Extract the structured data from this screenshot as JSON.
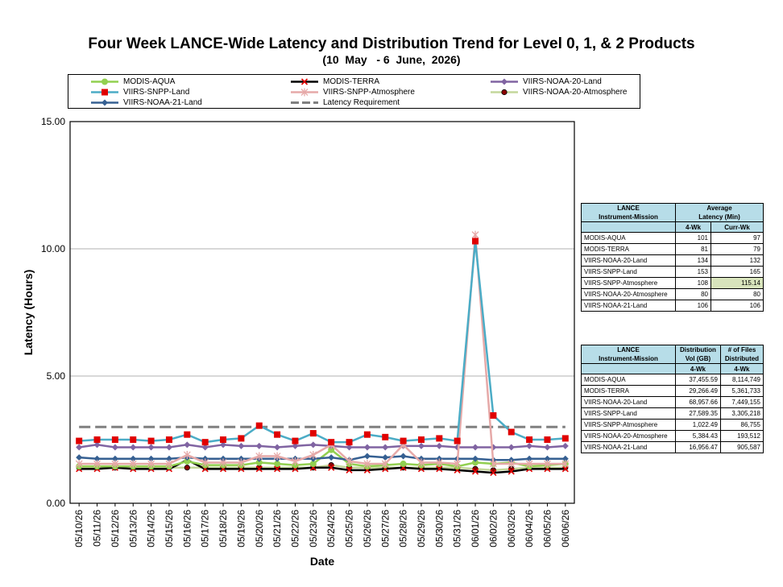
{
  "title": "Four Week LANCE-Wide Latency and Distribution Trend for Level 0, 1, & 2 Products",
  "subtitle": "(10  May   - 6  June,  2026)",
  "legend": [
    {
      "label": "MODIS-AQUA",
      "color": "#92d050",
      "marker": "circle"
    },
    {
      "label": "MODIS-TERRA",
      "color": "#000000",
      "marker": "x"
    },
    {
      "label": "VIIRS-NOAA-20-Land",
      "color": "#8064a2",
      "marker": "diamond"
    },
    {
      "label": "VIIRS-SNPP-Land",
      "color": "#4bacc6",
      "marker": "square-red"
    },
    {
      "label": "VIIRS-SNPP-Atmosphere",
      "color": "#e6a9a8",
      "marker": "star"
    },
    {
      "label": "VIIRS-NOAA-20-Atmosphere",
      "color": "#c4d79b",
      "marker": "dot-dark"
    },
    {
      "label": "VIIRS-NOAA-21-Land",
      "color": "#366092",
      "marker": "diamond"
    },
    {
      "label": "Latency Requirement",
      "color": "#808080",
      "marker": "dash"
    }
  ],
  "chart_data": {
    "type": "line",
    "xlabel": "Date",
    "ylabel": "Latency (Hours)",
    "ylim": [
      0,
      15
    ],
    "yticks": [
      "0.00",
      "5.00",
      "10.00",
      "15.00"
    ],
    "grid": "horizontal",
    "categories": [
      "05/10/26",
      "05/11/26",
      "05/12/26",
      "05/13/26",
      "05/14/26",
      "05/15/26",
      "05/16/26",
      "05/17/26",
      "05/18/26",
      "05/19/26",
      "05/20/26",
      "05/21/26",
      "05/22/26",
      "05/23/26",
      "05/24/26",
      "05/25/26",
      "05/26/26",
      "05/27/26",
      "05/28/26",
      "05/29/26",
      "05/30/26",
      "05/31/26",
      "06/01/26",
      "06/02/26",
      "06/03/26",
      "06/04/26",
      "06/05/26",
      "06/06/26"
    ],
    "series": [
      {
        "name": "MODIS-AQUA",
        "color": "#92d050",
        "marker": "circle",
        "values": [
          1.45,
          1.45,
          1.45,
          1.45,
          1.45,
          1.45,
          1.65,
          1.5,
          1.5,
          1.5,
          1.6,
          1.55,
          1.5,
          1.55,
          2.1,
          1.55,
          1.45,
          1.5,
          1.55,
          1.5,
          1.55,
          1.45,
          1.6,
          1.55,
          1.6,
          1.45,
          1.5,
          1.55
        ]
      },
      {
        "name": "MODIS-TERRA",
        "color": "#000000",
        "marker": "x",
        "values": [
          1.35,
          1.35,
          1.4,
          1.35,
          1.35,
          1.35,
          1.7,
          1.35,
          1.35,
          1.35,
          1.35,
          1.35,
          1.35,
          1.4,
          1.4,
          1.3,
          1.3,
          1.35,
          1.4,
          1.35,
          1.35,
          1.3,
          1.25,
          1.2,
          1.25,
          1.35,
          1.35,
          1.35
        ]
      },
      {
        "name": "VIIRS-NOAA-20-Land",
        "color": "#8064a2",
        "marker": "diamond",
        "values": [
          2.2,
          2.3,
          2.2,
          2.2,
          2.2,
          2.2,
          2.3,
          2.2,
          2.3,
          2.25,
          2.25,
          2.2,
          2.25,
          2.3,
          2.25,
          2.2,
          2.2,
          2.2,
          2.25,
          2.25,
          2.25,
          2.2,
          2.2,
          2.2,
          2.2,
          2.25,
          2.2,
          2.25
        ]
      },
      {
        "name": "VIIRS-SNPP-Land",
        "color": "#4bacc6",
        "marker": "square-red",
        "values": [
          2.45,
          2.5,
          2.5,
          2.5,
          2.45,
          2.5,
          2.7,
          2.4,
          2.5,
          2.55,
          3.05,
          2.7,
          2.45,
          2.75,
          2.4,
          2.4,
          2.7,
          2.6,
          2.45,
          2.5,
          2.55,
          2.45,
          10.3,
          3.45,
          2.8,
          2.5,
          2.5,
          2.55
        ]
      },
      {
        "name": "VIIRS-SNPP-Atmosphere",
        "color": "#e6a9a8",
        "marker": "star",
        "values": [
          1.55,
          1.55,
          1.55,
          1.55,
          1.55,
          1.55,
          1.9,
          1.6,
          1.6,
          1.6,
          1.85,
          1.85,
          1.65,
          1.9,
          2.3,
          1.65,
          1.55,
          1.55,
          2.3,
          1.6,
          1.6,
          1.55,
          10.55,
          1.55,
          1.55,
          1.55,
          1.55,
          1.55
        ]
      },
      {
        "name": "VIIRS-NOAA-20-Atmosphere",
        "color": "#c4d79b",
        "marker": "dot-dark",
        "values": [
          1.4,
          1.4,
          1.4,
          1.4,
          1.4,
          1.4,
          1.4,
          1.4,
          1.4,
          1.4,
          1.4,
          1.4,
          1.4,
          1.4,
          1.5,
          1.4,
          1.4,
          1.4,
          1.4,
          1.4,
          1.4,
          1.4,
          1.35,
          1.3,
          1.35,
          1.4,
          1.4,
          1.4
        ]
      },
      {
        "name": "VIIRS-NOAA-21-Land",
        "color": "#366092",
        "marker": "diamond",
        "values": [
          1.8,
          1.75,
          1.75,
          1.75,
          1.75,
          1.75,
          1.8,
          1.75,
          1.75,
          1.75,
          1.75,
          1.75,
          1.75,
          1.75,
          1.8,
          1.7,
          1.85,
          1.8,
          1.85,
          1.75,
          1.75,
          1.75,
          1.75,
          1.7,
          1.7,
          1.75,
          1.75,
          1.75
        ]
      },
      {
        "name": "Latency Requirement",
        "color": "#808080",
        "marker": "dash",
        "values": [
          3,
          3,
          3,
          3,
          3,
          3,
          3,
          3,
          3,
          3,
          3,
          3,
          3,
          3,
          3,
          3,
          3,
          3,
          3,
          3,
          3,
          3,
          3,
          3,
          3,
          3,
          3,
          3
        ]
      }
    ]
  },
  "latency_table": {
    "header_col1": "LANCE\nInstrument-Mission",
    "header_col2": "Average\nLatency (Min)",
    "sub_4wk": "4-Wk",
    "sub_curr": "Curr-Wk",
    "rows": [
      {
        "name": "MODIS-AQUA",
        "wk4": "101",
        "curr": "97"
      },
      {
        "name": "MODIS-TERRA",
        "wk4": "81",
        "curr": "79"
      },
      {
        "name": "VIIRS-NOAA-20-Land",
        "wk4": "134",
        "curr": "132"
      },
      {
        "name": "VIIRS-SNPP-Land",
        "wk4": "153",
        "curr": "165"
      },
      {
        "name": "VIIRS-SNPP-Atmosphere",
        "wk4": "108",
        "curr": "115.14"
      },
      {
        "name": "VIIRS-NOAA-20-Atmosphere",
        "wk4": "80",
        "curr": "80"
      },
      {
        "name": "VIIRS-NOAA-21-Land",
        "wk4": "106",
        "curr": "106"
      }
    ]
  },
  "distribution_table": {
    "header_col1": "LANCE\nInstrument-Mission",
    "header_col2": "Distribution\nVol (GB)",
    "header_col3": "# of Files\nDistributed",
    "sub_vol": "4-Wk",
    "sub_files": "4-Wk",
    "rows": [
      {
        "name": "MODIS-AQUA",
        "vol": "37,455.59",
        "files": "8,114,749"
      },
      {
        "name": "MODIS-TERRA",
        "vol": "29,266.49",
        "files": "5,361,733"
      },
      {
        "name": "VIIRS-NOAA-20-Land",
        "vol": "68,957.66",
        "files": "7,449,155"
      },
      {
        "name": "VIIRS-SNPP-Land",
        "vol": "27,589.35",
        "files": "3,305,218"
      },
      {
        "name": "VIIRS-SNPP-Atmosphere",
        "vol": "1,022.49",
        "files": "86,755"
      },
      {
        "name": "VIIRS-NOAA-20-Atmosphere",
        "vol": "5,384.43",
        "files": "193,512"
      },
      {
        "name": "VIIRS-NOAA-21-Land",
        "vol": "16,956.47",
        "files": "905,587"
      }
    ]
  }
}
